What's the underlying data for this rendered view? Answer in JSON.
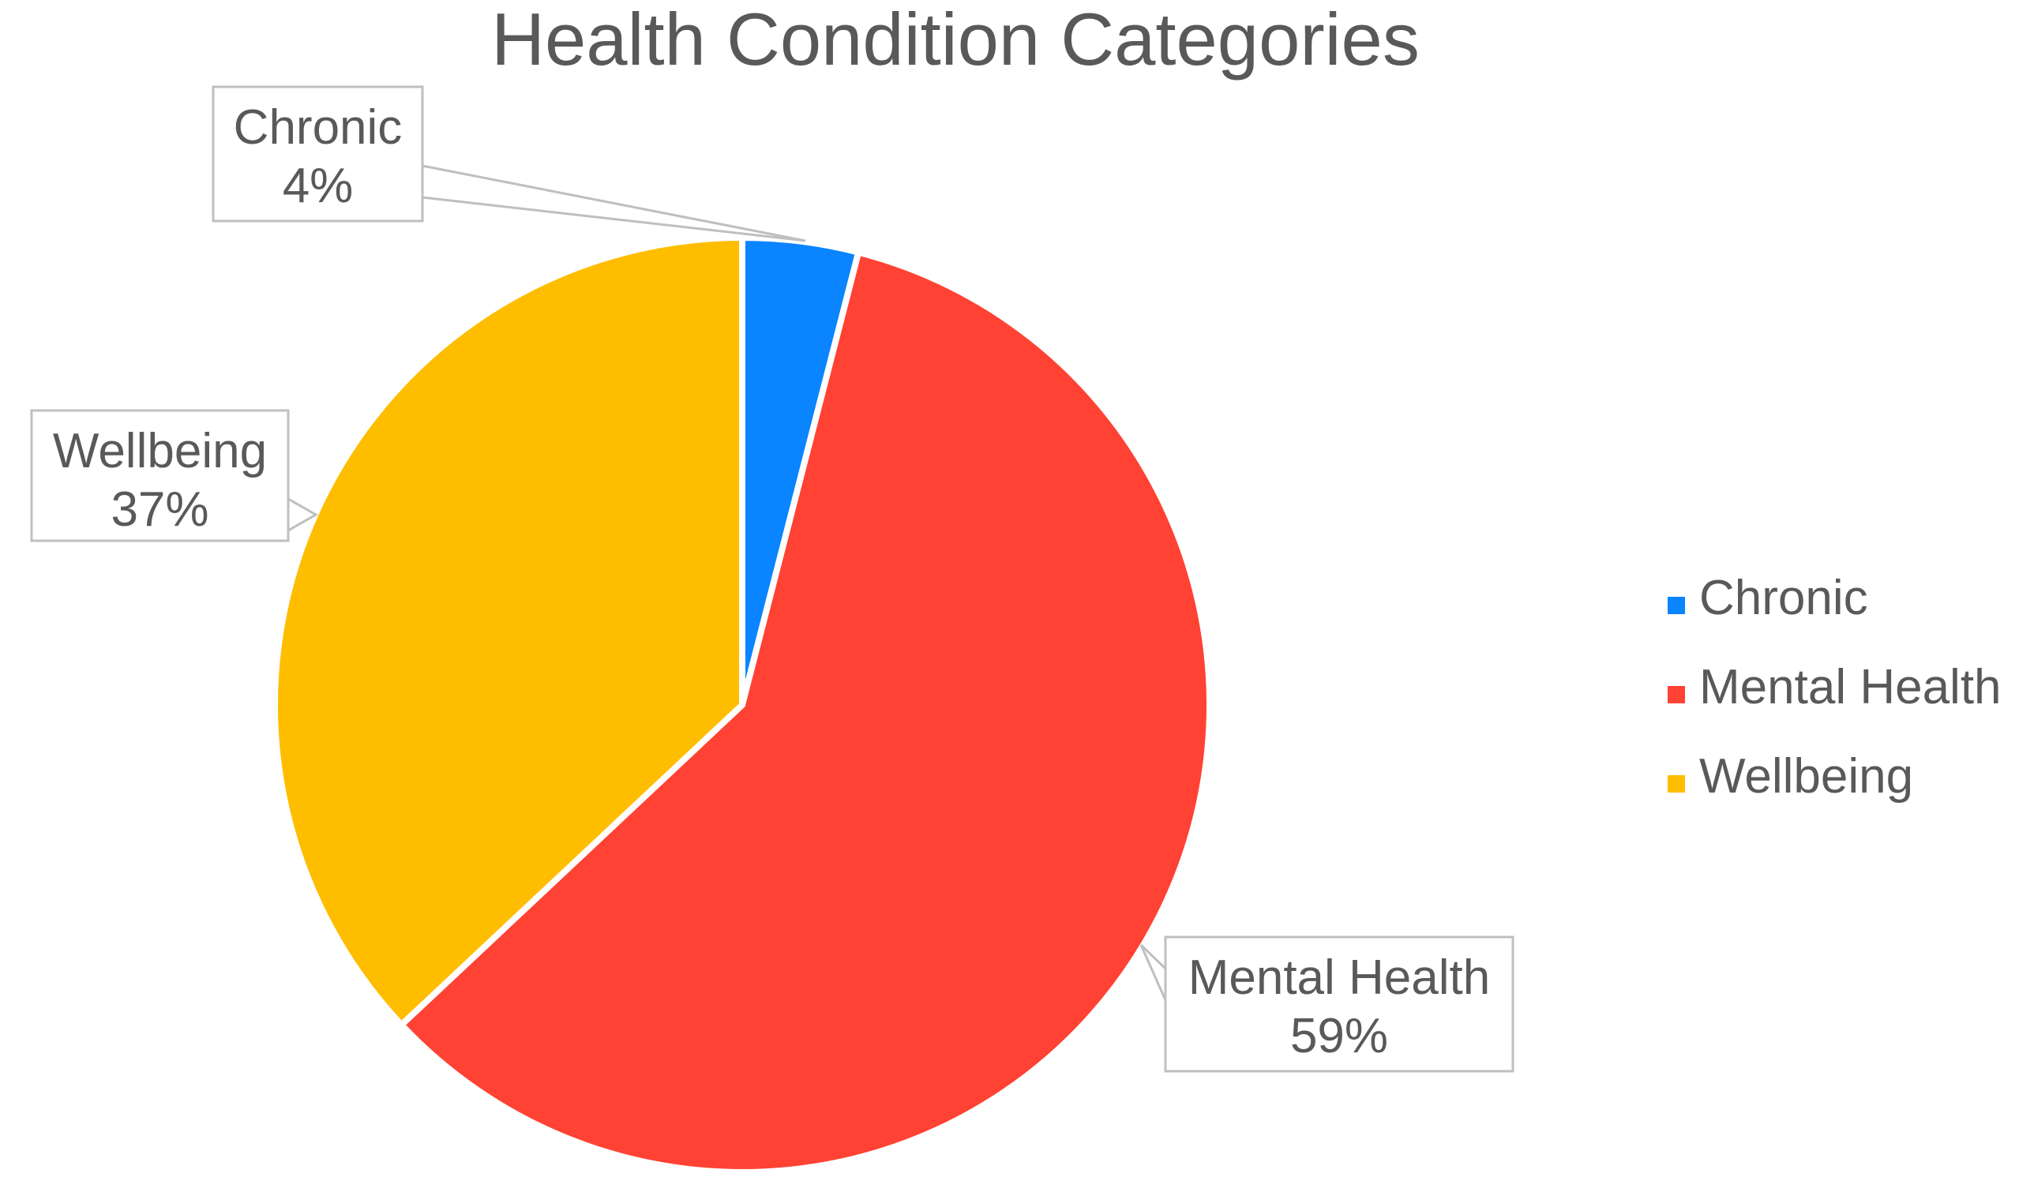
{
  "chart_data": {
    "type": "pie",
    "title": "Health Condition Categories",
    "categories": [
      "Chronic",
      "Mental Health",
      "Wellbeing"
    ],
    "values": [
      4,
      59,
      37
    ],
    "value_labels": [
      "4%",
      "59%",
      "37%"
    ],
    "colors": [
      "#0a84ff",
      "#ff4233",
      "#ffbd00"
    ],
    "legend_position": "right",
    "data_labels": "callouts"
  }
}
